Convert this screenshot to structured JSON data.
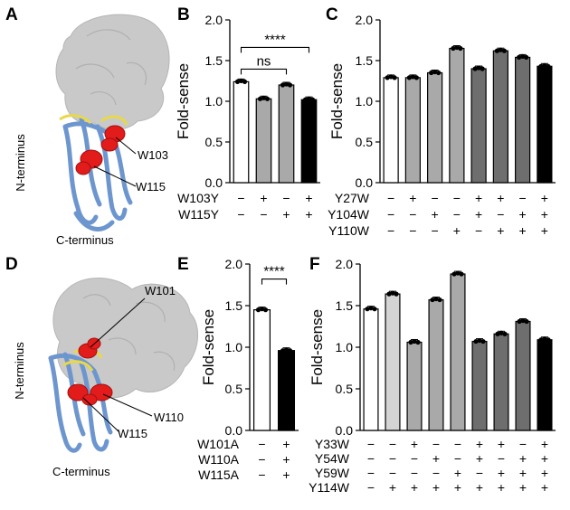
{
  "colors": {
    "protein_surface": "#c9c9c9",
    "scfv_ribbon": "#6d96cf",
    "trp_residue": "#e21b1b",
    "linker": "#e8d84a",
    "bar_white": "#ffffff",
    "bar_light": "#d4d4d4",
    "bar_mid": "#a9a9a9",
    "bar_dark": "#6e6e6e",
    "bar_black": "#000000"
  },
  "structures": [
    {
      "panel": "A",
      "labels": {
        "n_term": "N-terminus",
        "c_term": "C-terminus",
        "res1": "W103",
        "res2": "W115"
      }
    },
    {
      "panel": "D",
      "labels": {
        "n_term": "N-terminus",
        "c_term": "C-terminus",
        "res1": "W101",
        "res2": "W110",
        "res3": "W115"
      }
    }
  ],
  "chart_data": [
    {
      "panel": "B",
      "type": "bar",
      "ylabel": "Fold-sense",
      "ylim": [
        0,
        2.0
      ],
      "yticks": [
        "0.0",
        "0.5",
        "1.0",
        "1.5",
        "2.0"
      ],
      "conditions": [
        {
          "name": "W103Y",
          "signs": [
            "−",
            "+",
            "−",
            "+"
          ]
        },
        {
          "name": "W115Y",
          "signs": [
            "−",
            "−",
            "+",
            "+"
          ]
        }
      ],
      "values": [
        1.24,
        1.03,
        1.2,
        1.02
      ],
      "fills": [
        "#ffffff",
        "#a9a9a9",
        "#a9a9a9",
        "#000000"
      ],
      "significance": [
        {
          "text": "ns",
          "from": 0,
          "to": 2
        },
        {
          "text": "****",
          "from": 0,
          "to": 3
        }
      ]
    },
    {
      "panel": "C",
      "type": "bar",
      "ylabel": "Fold-sense",
      "ylim": [
        0,
        2.0
      ],
      "yticks": [
        "0.0",
        "0.5",
        "1.0",
        "1.5",
        "2.0"
      ],
      "conditions": [
        {
          "name": "Y27W",
          "signs": [
            "−",
            "+",
            "−",
            "−",
            "+",
            "+",
            "−",
            "+"
          ]
        },
        {
          "name": "Y104W",
          "signs": [
            "−",
            "−",
            "+",
            "−",
            "+",
            "−",
            "+",
            "+"
          ]
        },
        {
          "name": "Y110W",
          "signs": [
            "−",
            "−",
            "−",
            "+",
            "−",
            "+",
            "+",
            "+"
          ]
        }
      ],
      "values": [
        1.29,
        1.29,
        1.35,
        1.65,
        1.4,
        1.62,
        1.54,
        1.43
      ],
      "fills": [
        "#ffffff",
        "#a9a9a9",
        "#a9a9a9",
        "#a9a9a9",
        "#6e6e6e",
        "#6e6e6e",
        "#6e6e6e",
        "#000000"
      ]
    },
    {
      "panel": "E",
      "type": "bar",
      "ylabel": "Fold-sense",
      "ylim": [
        0,
        2.0
      ],
      "yticks": [
        "0.0",
        "0.5",
        "1.0",
        "1.5",
        "2.0"
      ],
      "conditions": [
        {
          "name": "W101A",
          "signs": [
            "−",
            "+"
          ]
        },
        {
          "name": "W110A",
          "signs": [
            "−",
            "+"
          ]
        },
        {
          "name": "W115A",
          "signs": [
            "−",
            "+"
          ]
        }
      ],
      "values": [
        1.45,
        0.96
      ],
      "fills": [
        "#ffffff",
        "#000000"
      ],
      "significance": [
        {
          "text": "****",
          "from": 0,
          "to": 1
        }
      ]
    },
    {
      "panel": "F",
      "type": "bar",
      "ylabel": "Fold-sense",
      "ylim": [
        0,
        2.0
      ],
      "yticks": [
        "0.0",
        "0.5",
        "1.0",
        "1.5",
        "2.0"
      ],
      "conditions": [
        {
          "name": "Y33W",
          "signs": [
            "−",
            "−",
            "+",
            "−",
            "−",
            "+",
            "+",
            "−",
            "+"
          ]
        },
        {
          "name": "Y54W",
          "signs": [
            "−",
            "−",
            "−",
            "+",
            "−",
            "+",
            "−",
            "+",
            "+"
          ]
        },
        {
          "name": "Y59W",
          "signs": [
            "−",
            "−",
            "−",
            "−",
            "+",
            "−",
            "+",
            "+",
            "+"
          ]
        },
        {
          "name": "Y114W",
          "signs": [
            "−",
            "+",
            "+",
            "+",
            "+",
            "+",
            "+",
            "+",
            "+"
          ]
        }
      ],
      "values": [
        1.46,
        1.64,
        1.06,
        1.57,
        1.88,
        1.07,
        1.16,
        1.31,
        1.09
      ],
      "fills": [
        "#ffffff",
        "#d4d4d4",
        "#a9a9a9",
        "#a9a9a9",
        "#a9a9a9",
        "#6e6e6e",
        "#6e6e6e",
        "#6e6e6e",
        "#000000"
      ]
    }
  ]
}
